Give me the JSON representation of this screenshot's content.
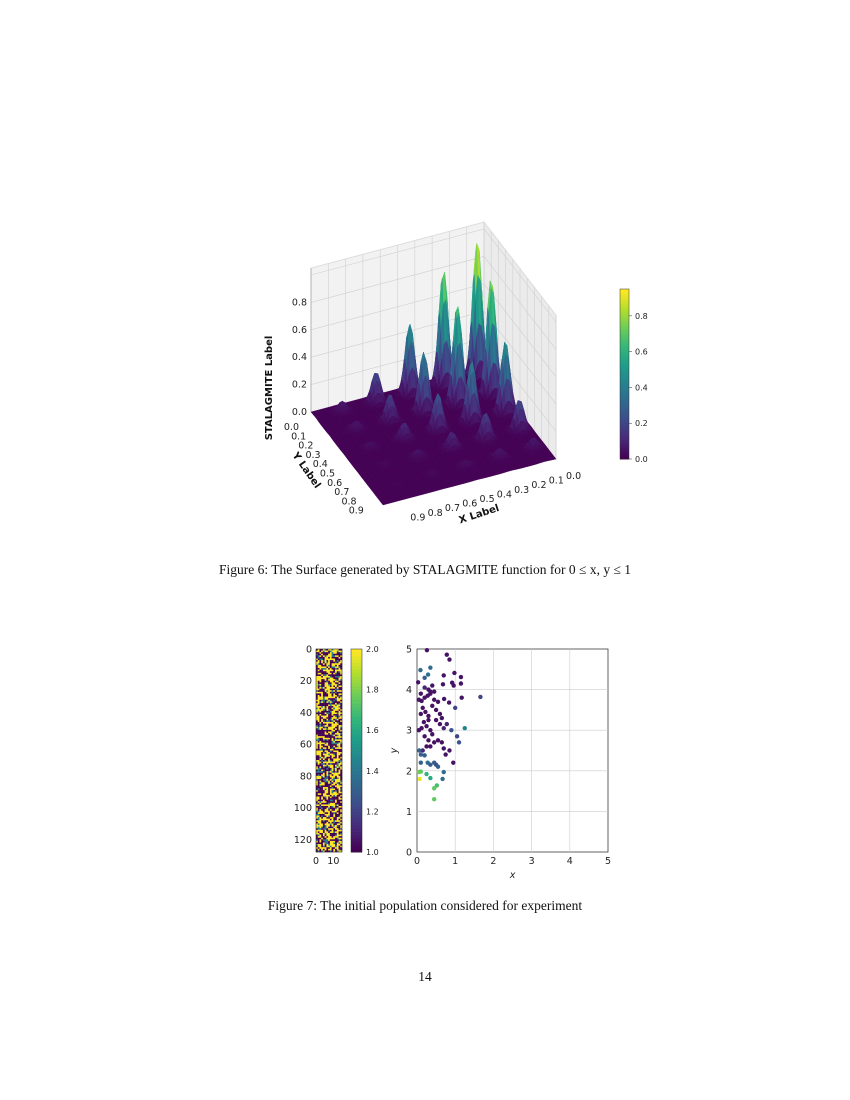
{
  "figure6": {
    "caption": "Figure 6: The Surface generated by STALAGMITE function for 0 ≤ x, y ≤ 1",
    "chart_data": {
      "type": "surface",
      "function": "STALAGMITE",
      "xlabel": "X Label",
      "ylabel": "Y Label",
      "zlabel": "STALAGMITE Label",
      "xlim": [
        0,
        1
      ],
      "ylim": [
        0,
        1
      ],
      "zlim": [
        0,
        1
      ],
      "xticks": [
        "0.0",
        "0.1",
        "0.2",
        "0.3",
        "0.4",
        "0.5",
        "0.6",
        "0.7",
        "0.8",
        "0.9"
      ],
      "yticks": [
        "0.0",
        "0.1",
        "0.2",
        "0.3",
        "0.4",
        "0.5",
        "0.6",
        "0.7",
        "0.8",
        "0.9"
      ],
      "zticks": [
        "0.0",
        "0.2",
        "0.4",
        "0.6",
        "0.8"
      ],
      "colormap": "viridis",
      "colorbar": {
        "ticks": [
          "0.0",
          "0.2",
          "0.4",
          "0.6",
          "0.8"
        ],
        "range": [
          0,
          0.95
        ]
      }
    }
  },
  "figure7": {
    "caption": "Figure 7: The initial population considered for experiment",
    "chart_data": [
      {
        "type": "heatmap",
        "colormap": "viridis",
        "xlim": [
          0,
          15
        ],
        "ylim": [
          128,
          0
        ],
        "xticks": [
          "0",
          "10"
        ],
        "yticks": [
          "0",
          "20",
          "40",
          "60",
          "80",
          "100",
          "120"
        ],
        "value_range": [
          1.0,
          2.0
        ],
        "colorbar": {
          "ticks": [
            "1.0",
            "1.2",
            "1.4",
            "1.6",
            "1.8",
            "2.0"
          ]
        }
      },
      {
        "type": "scatter",
        "xlabel": "x",
        "ylabel": "y",
        "xlim": [
          0,
          5
        ],
        "ylim": [
          0,
          5
        ],
        "xticks": [
          "0",
          "1",
          "2",
          "3",
          "4",
          "5"
        ],
        "yticks": [
          "0",
          "1",
          "2",
          "3",
          "4",
          "5"
        ],
        "grid": true,
        "colormap": "viridis",
        "points": [
          [
            0.26,
            4.97,
            0.05
          ],
          [
            0.09,
            4.48,
            0.35
          ],
          [
            0.03,
            4.18,
            0.05
          ],
          [
            0.35,
            4.54,
            0.35
          ],
          [
            0.29,
            4.37,
            0.35
          ],
          [
            0.2,
            4.29,
            0.3
          ],
          [
            0.78,
            4.86,
            0.05
          ],
          [
            0.85,
            4.74,
            0.05
          ],
          [
            0.98,
            4.41,
            0.05
          ],
          [
            1.15,
            4.31,
            0.05
          ],
          [
            1.15,
            4.15,
            0.05
          ],
          [
            0.7,
            4.35,
            0.05
          ],
          [
            0.68,
            4.13,
            0.05
          ],
          [
            0.92,
            4.17,
            0.05
          ],
          [
            0.96,
            4.1,
            0.05
          ],
          [
            1.66,
            3.82,
            0.2
          ],
          [
            1.17,
            3.8,
            0.05
          ],
          [
            1.0,
            3.55,
            0.2
          ],
          [
            0.84,
            3.68,
            0.05
          ],
          [
            0.71,
            3.77,
            0.05
          ],
          [
            0.05,
            3.75,
            0.05
          ],
          [
            0.12,
            3.72,
            0.05
          ],
          [
            0.2,
            3.8,
            0.05
          ],
          [
            0.28,
            3.85,
            0.05
          ],
          [
            0.35,
            3.9,
            0.05
          ],
          [
            0.15,
            3.55,
            0.05
          ],
          [
            0.22,
            3.45,
            0.05
          ],
          [
            0.1,
            3.4,
            0.05
          ],
          [
            0.3,
            3.35,
            0.05
          ],
          [
            0.4,
            3.6,
            0.05
          ],
          [
            0.45,
            3.75,
            0.05
          ],
          [
            0.5,
            3.5,
            0.05
          ],
          [
            0.55,
            3.7,
            0.05
          ],
          [
            0.18,
            3.2,
            0.05
          ],
          [
            0.25,
            3.1,
            0.05
          ],
          [
            0.12,
            3.05,
            0.05
          ],
          [
            0.05,
            3.0,
            0.05
          ],
          [
            0.3,
            3.25,
            0.05
          ],
          [
            0.35,
            3.0,
            0.05
          ],
          [
            0.5,
            3.25,
            0.05
          ],
          [
            0.6,
            3.15,
            0.05
          ],
          [
            0.7,
            3.05,
            0.1
          ],
          [
            0.78,
            3.15,
            0.1
          ],
          [
            0.4,
            2.9,
            0.05
          ],
          [
            0.3,
            2.75,
            0.05
          ],
          [
            0.2,
            2.85,
            0.05
          ],
          [
            0.45,
            2.7,
            0.05
          ],
          [
            0.55,
            2.75,
            0.05
          ],
          [
            0.65,
            2.7,
            0.05
          ],
          [
            0.7,
            2.55,
            0.05
          ],
          [
            0.75,
            2.4,
            0.05
          ],
          [
            0.85,
            2.5,
            0.05
          ],
          [
            0.25,
            2.6,
            0.05
          ],
          [
            0.15,
            2.5,
            0.1
          ],
          [
            0.35,
            2.6,
            0.05
          ],
          [
            0.2,
            4.05,
            0.1
          ],
          [
            0.3,
            4.0,
            0.05
          ],
          [
            0.4,
            4.1,
            0.05
          ],
          [
            0.35,
            3.95,
            0.05
          ],
          [
            0.1,
            3.9,
            0.05
          ],
          [
            0.45,
            3.95,
            0.05
          ],
          [
            0.6,
            3.4,
            0.05
          ],
          [
            0.95,
            2.2,
            0.05
          ],
          [
            0.9,
            3.0,
            0.25
          ],
          [
            1.05,
            2.85,
            0.2
          ],
          [
            1.1,
            2.7,
            0.25
          ],
          [
            1.25,
            3.05,
            0.45
          ],
          [
            0.65,
            3.3,
            0.05
          ],
          [
            0.06,
            2.5,
            0.3
          ],
          [
            0.1,
            2.4,
            0.3
          ],
          [
            0.2,
            2.38,
            0.3
          ],
          [
            0.28,
            2.2,
            0.35
          ],
          [
            0.35,
            2.15,
            0.3
          ],
          [
            0.45,
            2.2,
            0.3
          ],
          [
            0.5,
            2.15,
            0.25
          ],
          [
            0.55,
            2.1,
            0.3
          ],
          [
            0.1,
            2.2,
            0.3
          ],
          [
            0.7,
            1.97,
            0.35
          ],
          [
            0.67,
            1.8,
            0.35
          ],
          [
            0.05,
            1.97,
            0.8
          ],
          [
            0.1,
            1.98,
            0.75
          ],
          [
            0.25,
            1.92,
            0.65
          ],
          [
            0.35,
            1.82,
            0.6
          ],
          [
            0.07,
            1.8,
            0.97
          ],
          [
            0.45,
            1.57,
            0.75
          ],
          [
            0.52,
            1.64,
            0.7
          ],
          [
            0.45,
            1.3,
            0.75
          ]
        ]
      }
    ]
  },
  "page_number": "14"
}
